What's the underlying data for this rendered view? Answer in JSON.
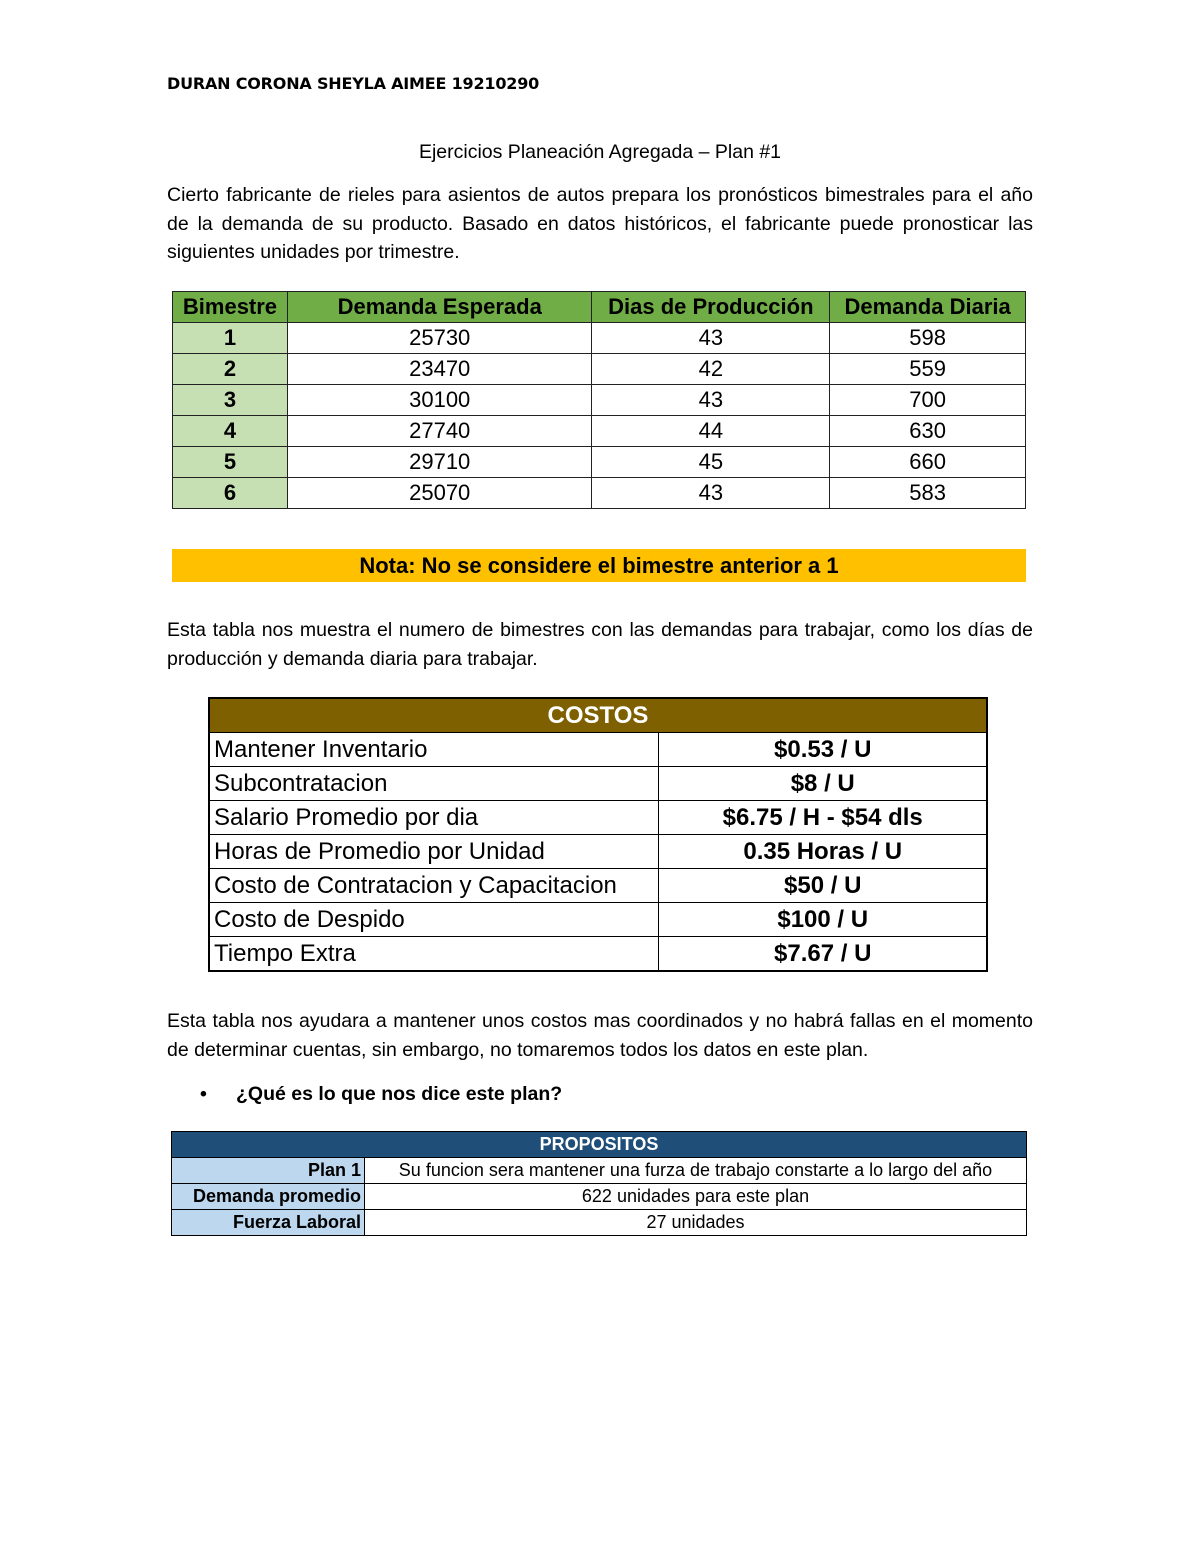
{
  "author": "DURAN CORONA SHEYLA AIMEE 19210290",
  "title": "Ejercicios Planeación Agregada – Plan #1",
  "intro": "Cierto fabricante de rieles para asientos de autos prepara los pronósticos bimestrales para el año de la demanda de su producto. Basado en datos históricos, el fabricante puede pronosticar las siguientes unidades por trimestre.",
  "demand_table": {
    "headers": [
      "Bimestre",
      "Demanda Esperada",
      "Dias de Producción",
      "Demanda Diaria"
    ],
    "rows": [
      [
        "1",
        "25730",
        "43",
        "598"
      ],
      [
        "2",
        "23470",
        "42",
        "559"
      ],
      [
        "3",
        "30100",
        "43",
        "700"
      ],
      [
        "4",
        "27740",
        "44",
        "630"
      ],
      [
        "5",
        "29710",
        "45",
        "660"
      ],
      [
        "6",
        "25070",
        "43",
        "583"
      ]
    ]
  },
  "nota": "Nota: No se considere el bimestre anterior a 1",
  "para2": "Esta tabla nos muestra el numero de bimestres con las demandas para trabajar, como los días de producción y demanda diaria para trabajar.",
  "costos": {
    "header": "COSTOS",
    "rows": [
      [
        "Mantener Inventario",
        "$0.53 / U"
      ],
      [
        "Subcontratacion",
        "$8 / U"
      ],
      [
        "Salario Promedio por dia",
        "$6.75 / H - $54 dls"
      ],
      [
        "Horas de Promedio por Unidad",
        "0.35 Horas / U"
      ],
      [
        "Costo de Contratacion y Capacitacion",
        "$50 / U"
      ],
      [
        "Costo de Despido",
        "$100 / U"
      ],
      [
        "Tiempo Extra",
        "$7.67 / U"
      ]
    ]
  },
  "para3": "Esta tabla nos ayudara a mantener unos costos mas coordinados y no habrá fallas en el momento de determinar cuentas, sin embargo, no tomaremos todos los datos en este plan.",
  "bullet": "¿Qué es lo que nos dice este plan?",
  "propositos": {
    "header": "PROPOSITOS",
    "rows": [
      [
        "Plan 1",
        "Su funcion sera mantener una furza de trabajo constarte a lo largo del año"
      ],
      [
        "Demanda promedio",
        "622 unidades para este plan"
      ],
      [
        "Fuerza Laboral",
        "27 unidades"
      ]
    ]
  },
  "colors": {
    "green_header": "#70ad47",
    "green_light": "#c6e0b4",
    "nota": "#ffc000",
    "costos_header": "#7f6000",
    "propositos_header": "#1f4e78",
    "propositos_label": "#bdd7ee"
  }
}
